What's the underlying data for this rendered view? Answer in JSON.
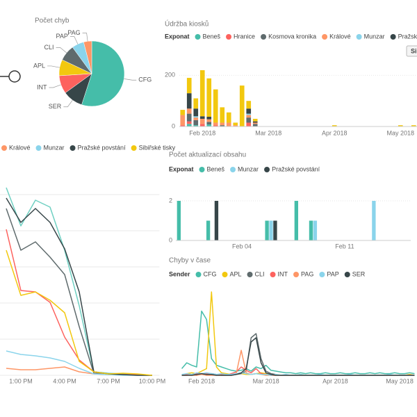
{
  "chart_data": [
    {
      "type": "pie",
      "title": "Počet chyb",
      "categories": [
        "CFG",
        "SER",
        "INT",
        "APL",
        "CLI",
        "PAP",
        "PAG"
      ],
      "values": [
        55,
        10,
        9,
        8,
        8,
        6,
        4
      ],
      "colors": [
        "#45bda9",
        "#374649",
        "#fd625e",
        "#f2c80f",
        "#5f6b6d",
        "#8ad4eb",
        "#fe9666"
      ]
    },
    {
      "type": "bar",
      "stacked": true,
      "title": "Údržba kiosků",
      "legend_title": "Exponat",
      "button_label": "Si",
      "categories": [
        null,
        null,
        null,
        "Feb 2018",
        null,
        null,
        null,
        null,
        null,
        null,
        null,
        null,
        null,
        "Mar 2018",
        null,
        null,
        null,
        null,
        null,
        null,
        null,
        null,
        null,
        "Apr 2018",
        null,
        null,
        null,
        null,
        null,
        null,
        null,
        null,
        null,
        "May 2018",
        null,
        null
      ],
      "ylim": [
        0,
        220
      ],
      "yticks": [
        0,
        200
      ],
      "grid": true,
      "series": [
        {
          "name": "Beneš",
          "color": "#45bda9",
          "values": [
            0,
            10,
            5,
            0,
            8,
            0,
            0,
            0,
            0,
            0,
            0,
            0,
            0,
            0,
            0,
            0,
            0,
            0,
            0,
            0,
            0,
            0,
            0,
            0,
            0,
            0,
            0,
            0,
            0,
            0,
            0,
            0,
            0,
            0,
            0,
            0
          ]
        },
        {
          "name": "Hranice",
          "color": "#fd625e",
          "values": [
            5,
            10,
            0,
            10,
            0,
            5,
            0,
            0,
            0,
            0,
            15,
            0,
            0,
            0,
            0,
            0,
            0,
            0,
            0,
            0,
            0,
            0,
            0,
            0,
            0,
            0,
            0,
            0,
            0,
            0,
            0,
            0,
            0,
            0,
            0,
            0
          ]
        },
        {
          "name": "Kosmova kronika",
          "color": "#5f6b6d",
          "values": [
            0,
            30,
            20,
            0,
            10,
            0,
            5,
            0,
            0,
            0,
            20,
            10,
            0,
            0,
            0,
            0,
            0,
            0,
            0,
            0,
            0,
            0,
            0,
            0,
            0,
            0,
            0,
            0,
            0,
            0,
            0,
            0,
            0,
            0,
            0,
            0
          ]
        },
        {
          "name": "Králové",
          "color": "#fe9666",
          "values": [
            40,
            20,
            10,
            20,
            10,
            10,
            10,
            15,
            5,
            0,
            10,
            5,
            0,
            0,
            0,
            0,
            0,
            0,
            0,
            0,
            0,
            0,
            0,
            0,
            0,
            0,
            0,
            0,
            0,
            0,
            0,
            0,
            0,
            0,
            0,
            0
          ]
        },
        {
          "name": "Munzar",
          "color": "#8ad4eb",
          "values": [
            0,
            0,
            5,
            0,
            0,
            0,
            0,
            0,
            0,
            0,
            5,
            0,
            0,
            0,
            0,
            0,
            0,
            0,
            0,
            0,
            0,
            0,
            0,
            0,
            0,
            0,
            0,
            0,
            0,
            0,
            0,
            0,
            0,
            0,
            0,
            0
          ]
        },
        {
          "name": "Pražské povstání",
          "color": "#374649",
          "values": [
            0,
            60,
            30,
            10,
            10,
            0,
            0,
            0,
            0,
            0,
            20,
            5,
            0,
            0,
            0,
            0,
            0,
            0,
            0,
            0,
            0,
            0,
            0,
            0,
            0,
            0,
            0,
            0,
            0,
            0,
            0,
            0,
            0,
            0,
            0,
            0
          ]
        },
        {
          "name": "Sibiřské tisky",
          "color": "#f2c80f",
          "values": [
            20,
            60,
            40,
            180,
            150,
            130,
            60,
            40,
            10,
            160,
            30,
            10,
            0,
            0,
            0,
            0,
            0,
            0,
            0,
            0,
            0,
            0,
            0,
            5,
            0,
            0,
            0,
            0,
            0,
            0,
            0,
            0,
            0,
            5,
            0,
            5
          ]
        }
      ]
    },
    {
      "type": "line",
      "grid": true,
      "categories": [
        null,
        "1:00 PM",
        null,
        null,
        "4:00 PM",
        null,
        null,
        "7:00 PM",
        null,
        null,
        "10:00 PM"
      ],
      "ylim": [
        0,
        310
      ],
      "series": [
        {
          "color": "#6fd0c2",
          "values": [
            270,
            215,
            252,
            242,
            180,
            100,
            5,
            3,
            2,
            1,
            0
          ]
        },
        {
          "color": "#5f6b6d",
          "values": [
            240,
            180,
            192,
            170,
            145,
            70,
            3,
            2,
            1,
            0,
            0
          ]
        },
        {
          "color": "#fd625e",
          "values": [
            210,
            122,
            120,
            105,
            55,
            22,
            5,
            2,
            1,
            1,
            0
          ]
        },
        {
          "name": "Králové",
          "color": "#fe9666",
          "values": [
            10,
            8,
            8,
            10,
            12,
            5,
            2,
            1,
            1,
            0,
            0
          ]
        },
        {
          "name": "Munzar",
          "color": "#8ad4eb",
          "values": [
            35,
            30,
            28,
            25,
            20,
            10,
            2,
            1,
            0,
            0,
            0
          ]
        },
        {
          "name": "Pražské povstání",
          "color": "#374649",
          "values": [
            255,
            220,
            240,
            220,
            182,
            120,
            5,
            2,
            1,
            0,
            0
          ]
        },
        {
          "name": "Sibiřské tisky",
          "color": "#f2c80f",
          "values": [
            180,
            115,
            120,
            108,
            90,
            20,
            5,
            2,
            3,
            2,
            0
          ]
        }
      ]
    },
    {
      "type": "bar",
      "stacked": false,
      "title": "Počet aktualizací obsahu",
      "legend_title": "Exponat",
      "categories": [
        null,
        null,
        null,
        null,
        "Feb 04",
        null,
        null,
        null,
        null,
        null,
        null,
        "Feb 11",
        null,
        null,
        null,
        null
      ],
      "ylim": [
        0,
        2
      ],
      "yticks": [
        0,
        2
      ],
      "grid": true,
      "series": [
        {
          "name": "Beneš",
          "color": "#45bda9",
          "values": [
            2,
            0,
            1,
            0,
            0,
            0,
            1,
            0,
            2,
            1,
            0,
            0,
            0,
            0,
            0,
            0
          ]
        },
        {
          "name": "Munzar",
          "color": "#8ad4eb",
          "values": [
            0,
            0,
            0,
            0,
            0,
            0,
            1,
            0,
            0,
            1,
            0,
            0,
            0,
            2,
            0,
            0
          ]
        },
        {
          "name": "Pražské povstání",
          "color": "#374649",
          "values": [
            0,
            0,
            2,
            0,
            0,
            0,
            1,
            0,
            0,
            0,
            0,
            0,
            0,
            0,
            0,
            0
          ]
        }
      ]
    },
    {
      "type": "line",
      "title": "Chyby v čase",
      "legend_title": "Sender",
      "categories": [
        null,
        null,
        null,
        null,
        "Feb 2018",
        null,
        null,
        null,
        null,
        null,
        null,
        null,
        null,
        null,
        null,
        null,
        null,
        "Mar 2018",
        null,
        null,
        null,
        null,
        null,
        null,
        null,
        null,
        null,
        null,
        null,
        null,
        null,
        "Apr 2018",
        null,
        null,
        null,
        null,
        null,
        null,
        null,
        null,
        null,
        null,
        null,
        null,
        "May 2018",
        null,
        null,
        null
      ],
      "ylim": [
        0,
        100
      ],
      "series": [
        {
          "name": "CFG",
          "color": "#45bda9",
          "values": [
            8,
            15,
            12,
            10,
            77,
            67,
            20,
            12,
            10,
            8,
            6,
            5,
            6,
            8,
            5,
            10,
            8,
            12,
            6,
            5,
            4,
            3,
            3,
            2,
            3,
            2,
            3,
            2,
            2,
            3,
            2,
            2,
            3,
            2,
            2,
            3,
            2,
            2,
            3,
            2,
            3,
            2,
            2,
            3,
            2,
            2,
            3,
            2
          ]
        },
        {
          "name": "APL",
          "color": "#f2c80f",
          "values": [
            0,
            2,
            3,
            2,
            5,
            8,
            100,
            10,
            3,
            2,
            1,
            1,
            2,
            1,
            1,
            2,
            3,
            2,
            1,
            1,
            0,
            0,
            0,
            0,
            1,
            0,
            0,
            0,
            0,
            0,
            0,
            0,
            0,
            0,
            0,
            0,
            0,
            0,
            0,
            0,
            0,
            0,
            0,
            0,
            0,
            0,
            1,
            0
          ]
        },
        {
          "name": "CLI",
          "color": "#5f6b6d",
          "values": [
            0,
            0,
            1,
            0,
            2,
            1,
            2,
            1,
            0,
            0,
            0,
            1,
            2,
            5,
            45,
            50,
            20,
            5,
            2,
            1,
            0,
            0,
            0,
            0,
            0,
            0,
            0,
            0,
            0,
            0,
            0,
            0,
            0,
            0,
            0,
            0,
            0,
            0,
            0,
            0,
            0,
            0,
            0,
            0,
            0,
            0,
            0,
            0
          ]
        },
        {
          "name": "INT",
          "color": "#fd625e",
          "values": [
            0,
            1,
            0,
            2,
            1,
            2,
            1,
            0,
            1,
            0,
            2,
            4,
            10,
            6,
            3,
            8,
            2,
            1,
            0,
            0,
            0,
            0,
            0,
            0,
            0,
            0,
            0,
            0,
            0,
            0,
            0,
            0,
            0,
            0,
            0,
            0,
            0,
            0,
            0,
            0,
            0,
            0,
            0,
            0,
            0,
            0,
            0,
            0
          ]
        },
        {
          "name": "PAG",
          "color": "#fe9666",
          "values": [
            0,
            0,
            0,
            0,
            1,
            0,
            0,
            0,
            0,
            0,
            0,
            2,
            30,
            3,
            1,
            2,
            1,
            0,
            0,
            0,
            0,
            0,
            0,
            0,
            0,
            0,
            0,
            0,
            0,
            0,
            0,
            0,
            0,
            0,
            0,
            0,
            0,
            0,
            0,
            0,
            0,
            0,
            0,
            0,
            0,
            0,
            0,
            0
          ]
        },
        {
          "name": "PAP",
          "color": "#8ad4eb",
          "values": [
            1,
            2,
            1,
            3,
            2,
            3,
            2,
            1,
            2,
            1,
            1,
            2,
            3,
            2,
            1,
            2,
            1,
            1,
            0,
            1,
            0,
            1,
            0,
            0,
            1,
            0,
            0,
            0,
            1,
            0,
            0,
            0,
            0,
            0,
            1,
            0,
            0,
            0,
            0,
            0,
            0,
            0,
            1,
            0,
            0,
            0,
            0,
            0
          ]
        },
        {
          "name": "SER",
          "color": "#374649",
          "values": [
            0,
            0,
            0,
            1,
            2,
            1,
            1,
            0,
            0,
            0,
            0,
            1,
            3,
            8,
            40,
            45,
            15,
            3,
            1,
            0,
            0,
            0,
            0,
            0,
            0,
            0,
            0,
            0,
            0,
            0,
            0,
            0,
            0,
            0,
            0,
            0,
            0,
            0,
            0,
            0,
            0,
            0,
            0,
            0,
            0,
            0,
            0,
            0
          ]
        }
      ]
    }
  ]
}
